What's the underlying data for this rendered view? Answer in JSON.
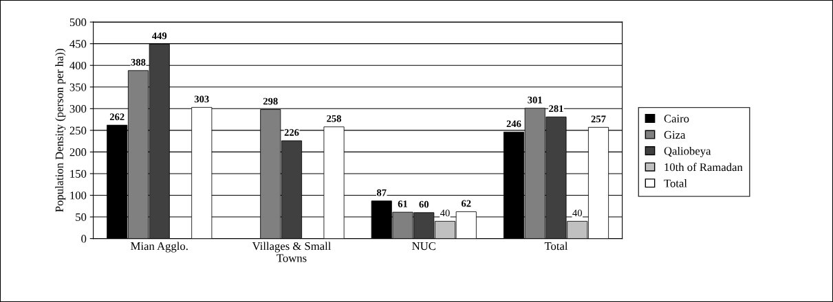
{
  "chart_data": {
    "type": "bar",
    "ylabel": "Population Density (person per ha))",
    "categories": [
      "Mian Agglo.",
      "Villages & Small Towns",
      "NUC",
      "Total"
    ],
    "series": [
      {
        "name": "Cairo",
        "color": "#000000",
        "values": [
          262,
          null,
          87,
          246
        ]
      },
      {
        "name": "Giza",
        "color": "#808080",
        "values": [
          388,
          298,
          61,
          301
        ]
      },
      {
        "name": "Qaliobeya",
        "color": "#404040",
        "values": [
          449,
          226,
          60,
          281
        ]
      },
      {
        "name": "10th of Ramadan",
        "color": "#c0c0c0",
        "values": [
          null,
          null,
          40,
          40
        ]
      },
      {
        "name": "Total",
        "color": "#ffffff",
        "values": [
          303,
          258,
          62,
          257
        ]
      }
    ],
    "ylim": [
      0,
      500
    ],
    "yticks": [
      0,
      50,
      100,
      150,
      200,
      250,
      300,
      350,
      400,
      450,
      500
    ],
    "grid": "y",
    "legend": "right",
    "data_labels": true
  }
}
